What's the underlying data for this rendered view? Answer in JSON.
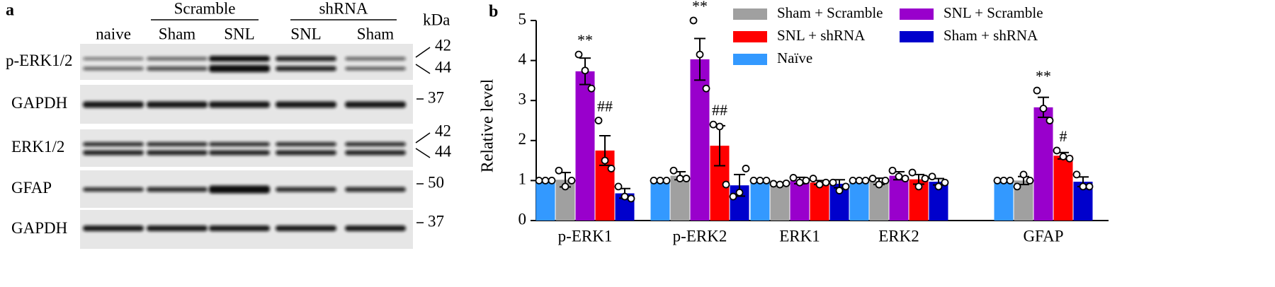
{
  "blot": {
    "panel_label": "a",
    "groups": [
      "Scramble",
      "shRNA"
    ],
    "lanes": [
      "naive",
      "Sham",
      "SNL",
      "SNL",
      "Sham"
    ],
    "unit": "kDa",
    "rows": [
      {
        "label": "p-ERK1/2",
        "markers": [
          "42",
          "44"
        ]
      },
      {
        "label": "GAPDH",
        "markers": [
          "37"
        ]
      },
      {
        "label": "ERK1/2",
        "markers": [
          "42",
          "44"
        ]
      },
      {
        "label": "GFAP",
        "markers": [
          "50"
        ]
      },
      {
        "label": "GAPDH",
        "markers": [
          "37"
        ]
      }
    ]
  },
  "chart_data": {
    "type": "bar",
    "panel_label": "b",
    "y_label": "Relative level",
    "categories": [
      "p-ERK1",
      "p-ERK2",
      "ERK1",
      "ERK2",
      "GFAP"
    ],
    "ylim": [
      0,
      5
    ],
    "yticks": [
      0,
      1,
      2,
      3,
      4,
      5
    ],
    "series": [
      {
        "name": "Naïve",
        "color": "#3399ff",
        "values": [
          1.0,
          1.0,
          1.0,
          1.0,
          1.0
        ],
        "errors": [
          0,
          0,
          0,
          0,
          0
        ],
        "points": [
          [
            1,
            1,
            1
          ],
          [
            1,
            1,
            1
          ],
          [
            1,
            1,
            1
          ],
          [
            1,
            1,
            1
          ],
          [
            1,
            1,
            1
          ]
        ],
        "significance": [
          null,
          null,
          null,
          null,
          null
        ]
      },
      {
        "name": "Sham + Scramble",
        "color": "#a0a0a0",
        "values": [
          1.02,
          1.12,
          0.92,
          0.98,
          1.0
        ],
        "errors": [
          0.18,
          0.1,
          0.03,
          0.08,
          0.1
        ],
        "points": [
          [
            1.25,
            0.85,
            1.0
          ],
          [
            1.25,
            1.05,
            1.05
          ],
          [
            0.92,
            0.9,
            0.93
          ],
          [
            1.05,
            0.9,
            1.0
          ],
          [
            0.85,
            1.15,
            1.0
          ]
        ],
        "significance": [
          null,
          null,
          null,
          null,
          null
        ]
      },
      {
        "name": "SNL + Scramble",
        "color": "#9900cc",
        "values": [
          3.73,
          4.03,
          1.0,
          1.12,
          2.83
        ],
        "errors": [
          0.33,
          0.52,
          0.08,
          0.1,
          0.25
        ],
        "points": [
          [
            4.15,
            3.75,
            3.3
          ],
          [
            5.0,
            4.15,
            3.3
          ],
          [
            1.07,
            0.95,
            1.0
          ],
          [
            1.25,
            1.1,
            1.05
          ],
          [
            3.25,
            2.8,
            2.5
          ]
        ],
        "significance": [
          "**",
          "**",
          null,
          null,
          "**"
        ]
      },
      {
        "name": "SNL + shRNA",
        "color": "#ff0000",
        "values": [
          1.75,
          1.87,
          0.95,
          1.03,
          1.62
        ],
        "errors": [
          0.37,
          0.5,
          0.05,
          0.12,
          0.08
        ],
        "points": [
          [
            2.5,
            1.5,
            1.3
          ],
          [
            2.4,
            2.35,
            0.9
          ],
          [
            1.05,
            0.9,
            0.95
          ],
          [
            1.2,
            0.85,
            1.05
          ],
          [
            1.75,
            1.6,
            1.55
          ]
        ],
        "significance": [
          "##",
          "##",
          null,
          null,
          "#"
        ]
      },
      {
        "name": "Sham + shRNA",
        "color": "#0000cc",
        "values": [
          0.68,
          0.88,
          0.92,
          0.97,
          0.97
        ],
        "errors": [
          0.12,
          0.27,
          0.1,
          0.08,
          0.12
        ],
        "points": [
          [
            0.85,
            0.6,
            0.55
          ],
          [
            0.6,
            0.7,
            1.3
          ],
          [
            0.95,
            0.75,
            0.85
          ],
          [
            1.1,
            0.85,
            0.95
          ],
          [
            1.15,
            0.85,
            0.85
          ]
        ],
        "significance": [
          null,
          null,
          null,
          null,
          null
        ]
      }
    ]
  }
}
